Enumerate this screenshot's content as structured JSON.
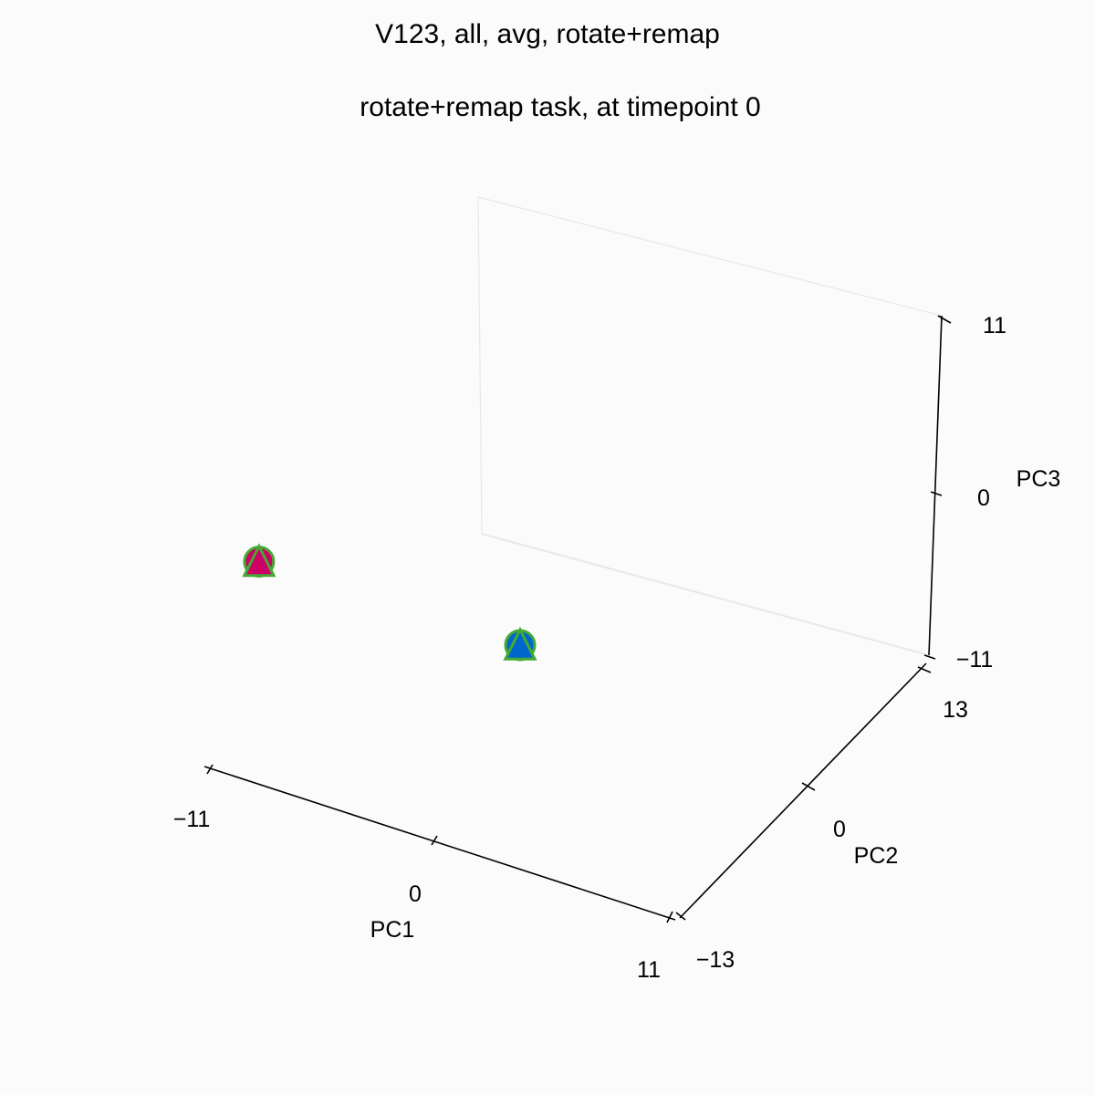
{
  "chart_data": {
    "type": "scatter",
    "projection": "3d",
    "title": "V123, all, avg, rotate+remap",
    "subtitle": "rotate+remap task, at timepoint 0",
    "axes": {
      "x": {
        "label": "PC1",
        "range": [
          -11,
          11
        ],
        "ticks": [
          -11,
          0,
          11
        ],
        "tick_labels": [
          "−11",
          "0",
          "11"
        ]
      },
      "y": {
        "label": "PC2",
        "range": [
          -13,
          13
        ],
        "ticks": [
          -13,
          0,
          13
        ],
        "tick_labels": [
          "−13",
          "0",
          "13"
        ]
      },
      "z": {
        "label": "PC3",
        "range": [
          -11,
          11
        ],
        "ticks": [
          -11,
          0,
          11
        ],
        "tick_labels": [
          "−11",
          "0",
          "11"
        ]
      }
    },
    "grid": false,
    "points": [
      {
        "x": -6.0,
        "y": 6.0,
        "z": 0.7,
        "color": "#cc0066",
        "marker": "circle"
      },
      {
        "x": -6.0,
        "y": 6.0,
        "z": 0.7,
        "color": "#cc0066",
        "marker": "triangle"
      },
      {
        "x": 6.0,
        "y": 5.5,
        "z": 1.0,
        "color": "#0066cc",
        "marker": "circle"
      },
      {
        "x": 6.0,
        "y": 5.5,
        "z": 1.0,
        "color": "#0066cc",
        "marker": "triangle"
      }
    ],
    "marker_edge_color": "#44aa33",
    "axis_color": "#000000",
    "pane_edge_color": "#e8e8e8"
  }
}
